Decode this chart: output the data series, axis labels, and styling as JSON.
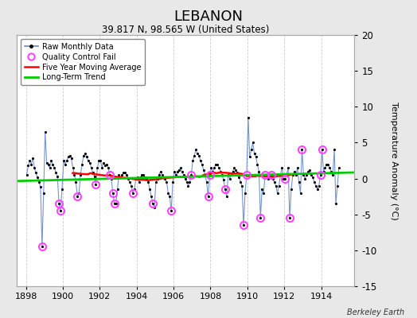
{
  "title": "LEBANON",
  "subtitle": "39.817 N, 98.565 W (United States)",
  "attribution": "Berkeley Earth",
  "ylabel_right": "Temperature Anomaly (°C)",
  "xlim": [
    1897.5,
    1915.8
  ],
  "ylim": [
    -15,
    20
  ],
  "yticks": [
    -15,
    -10,
    -5,
    0,
    5,
    10,
    15,
    20
  ],
  "xticks": [
    1898,
    1900,
    1902,
    1904,
    1906,
    1908,
    1910,
    1912,
    1914
  ],
  "fig_bg_color": "#e8e8e8",
  "plot_bg_color": "#ffffff",
  "grid_color": "#cccccc",
  "raw_line_color": "#6688cc",
  "raw_dot_color": "#000000",
  "ma_color": "#ff0000",
  "trend_color": "#00cc00",
  "qc_marker_color": "#ff44ff",
  "raw_data_y": [
    0.5,
    1.8,
    2.5,
    2.0,
    2.8,
    1.5,
    0.8,
    0.2,
    -0.5,
    -1.2,
    -9.5,
    -2.0,
    6.5,
    2.2,
    2.0,
    1.5,
    2.5,
    2.0,
    1.5,
    0.8,
    0.3,
    -3.5,
    -4.5,
    -1.5,
    2.5,
    2.0,
    2.5,
    3.0,
    3.2,
    2.8,
    1.5,
    0.5,
    -0.5,
    -2.5,
    -2.0,
    0.5,
    2.0,
    3.2,
    3.5,
    3.0,
    2.5,
    2.2,
    1.5,
    0.8,
    0.3,
    -0.8,
    1.5,
    2.5,
    2.5,
    1.5,
    2.2,
    1.8,
    2.0,
    1.5,
    0.5,
    0.0,
    -2.0,
    -3.5,
    -3.5,
    -1.5,
    0.5,
    0.2,
    0.5,
    0.8,
    0.8,
    0.5,
    0.0,
    -0.5,
    -1.0,
    -2.0,
    -1.5,
    0.0,
    0.2,
    -0.5,
    0.2,
    0.5,
    0.5,
    0.2,
    0.0,
    -0.5,
    -1.5,
    -2.5,
    -3.5,
    -4.0,
    -0.5,
    0.0,
    0.5,
    1.0,
    0.5,
    0.2,
    0.0,
    -0.5,
    -2.0,
    -2.5,
    -4.5,
    -0.5,
    1.0,
    0.5,
    1.0,
    1.2,
    1.5,
    1.0,
    0.5,
    0.0,
    -0.5,
    -1.0,
    -0.5,
    0.5,
    2.5,
    3.2,
    4.0,
    3.5,
    3.2,
    2.5,
    2.0,
    1.2,
    0.5,
    -0.5,
    -2.5,
    0.5,
    1.5,
    1.0,
    1.5,
    2.0,
    2.0,
    1.5,
    1.0,
    0.5,
    -0.2,
    -1.5,
    -2.5,
    0.5,
    0.0,
    0.5,
    1.0,
    1.5,
    1.2,
    0.8,
    0.2,
    -0.5,
    -1.0,
    -6.5,
    -2.0,
    0.5,
    8.5,
    3.0,
    4.0,
    5.0,
    3.5,
    3.0,
    2.0,
    1.0,
    -5.5,
    -1.5,
    -2.0,
    0.5,
    0.5,
    0.0,
    0.5,
    0.5,
    0.0,
    -0.5,
    -1.0,
    -2.0,
    -1.0,
    0.5,
    1.5,
    0.0,
    0.0,
    0.5,
    1.5,
    -5.5,
    -1.5,
    0.5,
    1.0,
    0.5,
    1.5,
    -0.5,
    -2.0,
    4.0,
    0.5,
    0.0,
    0.5,
    1.0,
    1.2,
    0.5,
    0.2,
    -0.5,
    -1.0,
    -1.5,
    -1.0,
    0.5,
    4.0,
    1.0,
    1.5,
    2.0,
    2.0,
    1.5,
    1.0,
    0.5,
    4.0,
    -3.5,
    -1.0,
    1.5
  ],
  "qc_fail_indices": [
    10,
    21,
    22,
    33,
    45,
    54,
    56,
    57,
    69,
    82,
    94,
    107,
    118,
    119,
    129,
    141,
    143,
    152,
    155,
    159,
    168,
    171,
    179,
    191,
    192
  ],
  "trend_x": [
    1897.5,
    1915.8
  ],
  "trend_y": [
    -0.35,
    0.85
  ]
}
